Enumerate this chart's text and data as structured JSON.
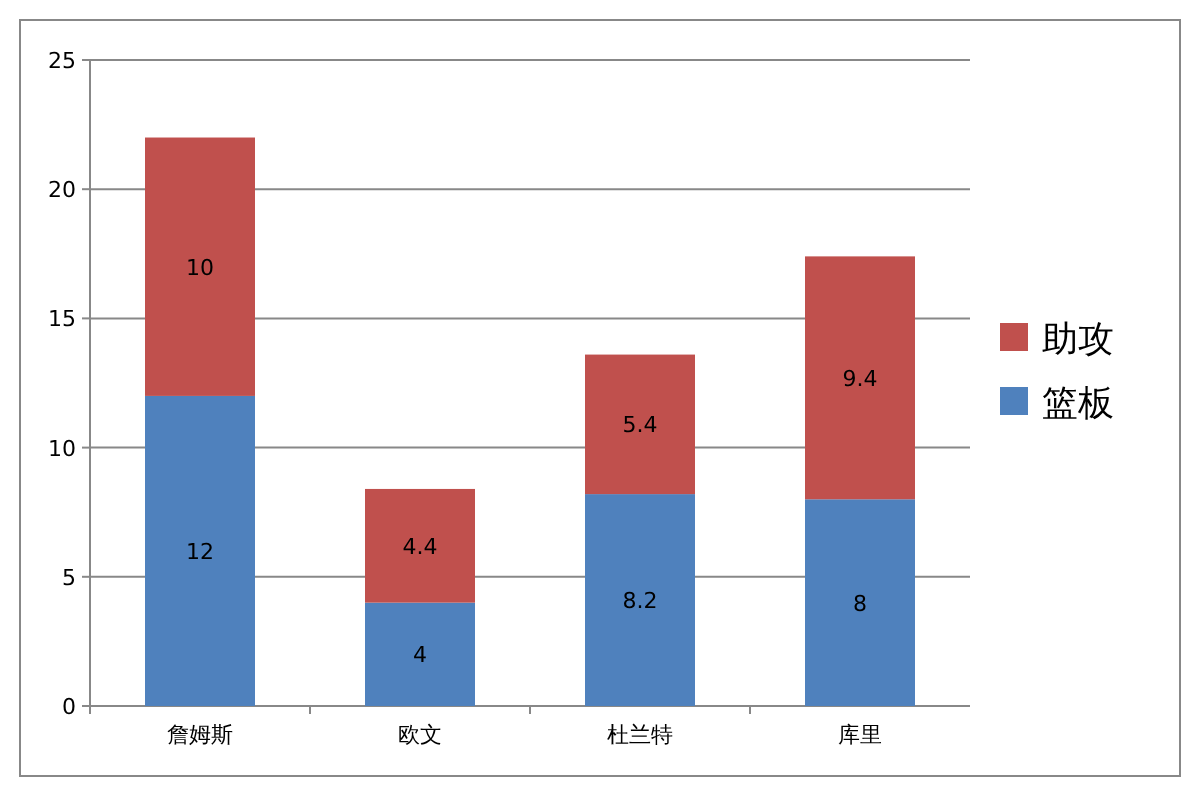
{
  "chart_data": {
    "type": "bar",
    "stacked": true,
    "categories": [
      "詹姆斯",
      "欧文",
      "杜兰特",
      "库里"
    ],
    "series": [
      {
        "name": "篮板",
        "color": "#4f81bd",
        "values": [
          12,
          4,
          8.2,
          8
        ]
      },
      {
        "name": "助攻",
        "color": "#c0504d",
        "values": [
          10,
          4.4,
          5.4,
          9.4
        ]
      }
    ],
    "ylim": [
      0,
      25
    ],
    "yticks": [
      0,
      5,
      10,
      15,
      20,
      25
    ],
    "grid": "y",
    "legend": "right",
    "data_labels": true
  }
}
